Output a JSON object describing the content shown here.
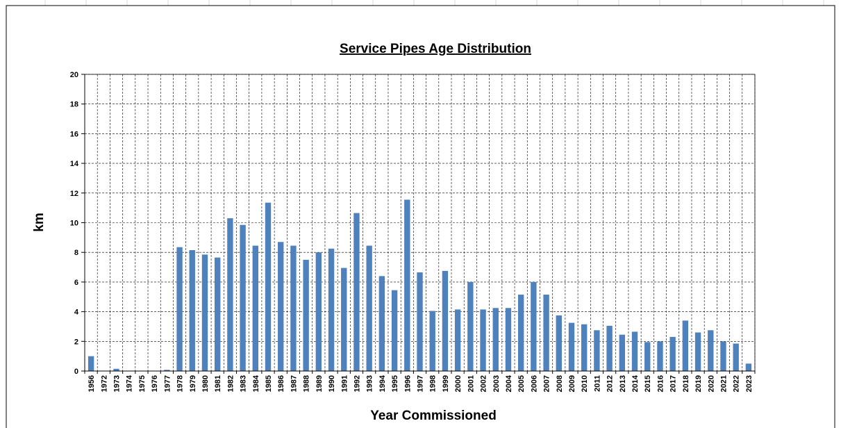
{
  "chart_data": {
    "type": "bar",
    "title": "Service Pipes Age Distribution",
    "xlabel": "Year Commissioned",
    "ylabel": "km",
    "ylim": [
      0,
      20
    ],
    "yticks": [
      "0",
      "2",
      "4",
      "6",
      "8",
      "10",
      "12",
      "14",
      "16",
      "18",
      "20"
    ],
    "grid": true,
    "legend": "none",
    "bar_color": "#4f81bd",
    "categories": [
      "1956",
      "1972",
      "1973",
      "1974",
      "1975",
      "1976",
      "1977",
      "1978",
      "1979",
      "1980",
      "1981",
      "1982",
      "1983",
      "1984",
      "1985",
      "1986",
      "1987",
      "1988",
      "1989",
      "1990",
      "1991",
      "1992",
      "1993",
      "1994",
      "1995",
      "1996",
      "1997",
      "1998",
      "1999",
      "2000",
      "2001",
      "2002",
      "2003",
      "2004",
      "2005",
      "2006",
      "2007",
      "2008",
      "2009",
      "2010",
      "2011",
      "2012",
      "2013",
      "2014",
      "2015",
      "2016",
      "2017",
      "2018",
      "2019",
      "2020",
      "2021",
      "2022",
      "2023"
    ],
    "values": [
      1.0,
      0,
      0.15,
      0,
      0,
      0,
      0.08,
      8.35,
      8.15,
      7.85,
      7.65,
      10.3,
      9.85,
      8.45,
      11.35,
      8.7,
      8.45,
      7.5,
      8.0,
      8.25,
      6.95,
      10.65,
      8.45,
      6.4,
      5.45,
      11.55,
      6.65,
      4.05,
      6.75,
      4.15,
      6.0,
      4.15,
      4.25,
      4.25,
      5.15,
      6.0,
      5.15,
      3.75,
      3.25,
      3.15,
      2.75,
      3.05,
      2.45,
      2.65,
      1.95,
      2.0,
      2.3,
      3.4,
      2.6,
      2.75,
      2.0,
      1.85,
      0.5
    ]
  }
}
